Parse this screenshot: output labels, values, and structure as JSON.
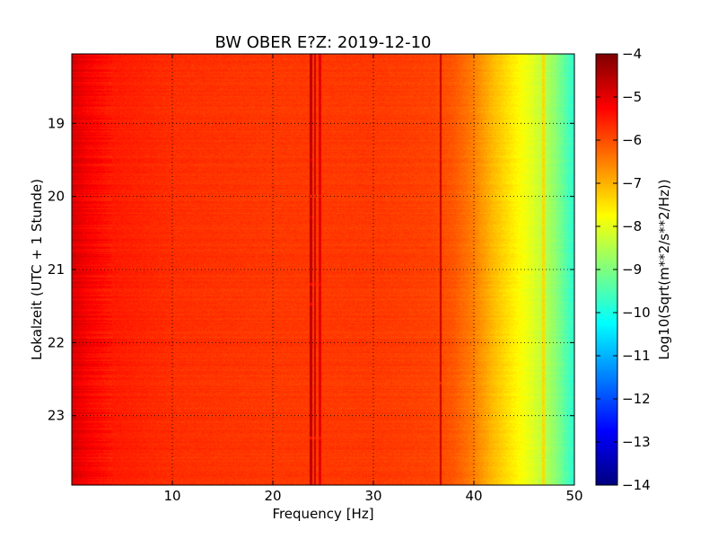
{
  "chart_data": {
    "type": "heatmap",
    "title": "BW OBER E?Z: 2019-12-10",
    "xlabel": "Frequency [Hz]",
    "ylabel": "Lokalzeit (UTC + 1 Stunde)",
    "xlim": [
      0,
      50
    ],
    "ylim": [
      18.05,
      23.95
    ],
    "y_inverted": true,
    "x_ticks": [
      10,
      20,
      30,
      40,
      50
    ],
    "x_tick_labels": [
      "10",
      "20",
      "30",
      "40",
      "50"
    ],
    "y_ticks": [
      19,
      20,
      21,
      22,
      23
    ],
    "y_tick_labels": [
      "19",
      "20",
      "21",
      "22",
      "23"
    ],
    "grid": true,
    "colormap": "jet",
    "colorbar": {
      "label": "Log10(Sqrt(m**2/s**2/Hz))",
      "range": [
        -14,
        -4
      ],
      "ticks": [
        -4,
        -5,
        -6,
        -7,
        -8,
        -9,
        -10,
        -11,
        -12,
        -13,
        -14
      ],
      "tick_labels": [
        "−4",
        "−5",
        "−6",
        "−7",
        "−8",
        "−9",
        "−10",
        "−11",
        "−12",
        "−13",
        "−14"
      ]
    },
    "frequency_profile": [
      {
        "hz": 0.0,
        "value": -4.9
      },
      {
        "hz": 1.5,
        "value": -5.2
      },
      {
        "hz": 4.0,
        "value": -5.5
      },
      {
        "hz": 10.0,
        "value": -5.7
      },
      {
        "hz": 20.0,
        "value": -5.8
      },
      {
        "hz": 30.0,
        "value": -5.8
      },
      {
        "hz": 36.0,
        "value": -5.9
      },
      {
        "hz": 38.0,
        "value": -6.1
      },
      {
        "hz": 40.0,
        "value": -6.5
      },
      {
        "hz": 42.0,
        "value": -7.1
      },
      {
        "hz": 44.0,
        "value": -7.6
      },
      {
        "hz": 46.0,
        "value": -8.1
      },
      {
        "hz": 48.0,
        "value": -8.8
      },
      {
        "hz": 49.5,
        "value": -9.6
      },
      {
        "hz": 50.0,
        "value": -9.8
      }
    ],
    "vertical_lines": [
      {
        "hz": 23.8,
        "value": -4.6
      },
      {
        "hz": 24.2,
        "value": -4.8
      },
      {
        "hz": 24.7,
        "value": -5.0
      },
      {
        "hz": 36.7,
        "value": -4.7
      },
      {
        "hz": 46.9,
        "value": -7.4
      }
    ],
    "horizontal_bands": [
      {
        "hour": 18.25,
        "hz_from": 6,
        "hz_to": 16,
        "value": -5.2
      },
      {
        "hour": 19.5,
        "hz_from": 15,
        "hz_to": 50,
        "value": -5.0
      },
      {
        "hour": 20.0,
        "hz_from": 5,
        "hz_to": 35,
        "value": -5.5
      },
      {
        "hour": 20.28,
        "hz_from": 10,
        "hz_to": 50,
        "value": -4.9
      },
      {
        "hour": 21.2,
        "hz_from": 6,
        "hz_to": 30,
        "value": -5.3
      },
      {
        "hour": 21.47,
        "hz_from": 6,
        "hz_to": 24,
        "value": -5.3
      },
      {
        "hour": 22.55,
        "hz_from": 27,
        "hz_to": 45,
        "value": -5.5
      },
      {
        "hour": 23.3,
        "hz_from": 6,
        "hz_to": 25,
        "value": -5.4
      }
    ]
  }
}
